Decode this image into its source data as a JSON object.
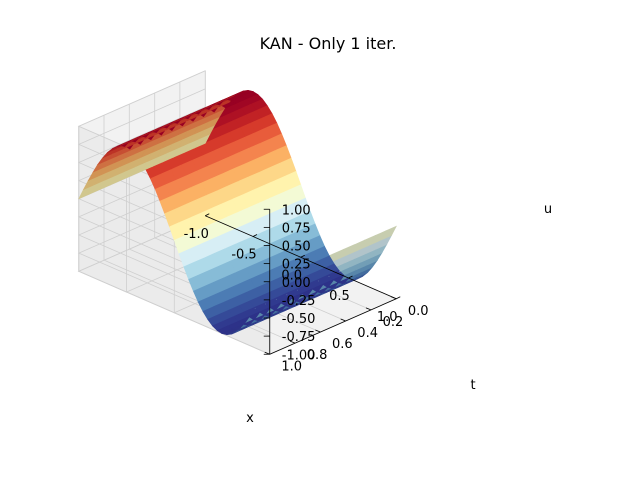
{
  "chart_data": {
    "type": "surface3d",
    "title": "KAN - Only 1 iter.",
    "xlabel": "x",
    "ylabel": "t",
    "zlabel": "u",
    "xlim": [
      -1,
      1
    ],
    "ylim": [
      0,
      1
    ],
    "zlim": [
      -1,
      1
    ],
    "xticks": [
      "-1.0",
      "-0.5",
      "0.0",
      "0.5",
      "1.0"
    ],
    "yticks": [
      "0.0",
      "0.2",
      "0.4",
      "0.6",
      "0.8",
      "1.0"
    ],
    "zticks": [
      "-1.00",
      "-0.75",
      "-0.50",
      "-0.25",
      "0.00",
      "0.25",
      "0.50",
      "0.75",
      "1.00"
    ],
    "surface": {
      "function": "u(x,t) = -sin(pi*x), constant in t",
      "x": [
        -1.0,
        -0.8,
        -0.6,
        -0.4,
        -0.2,
        0.0,
        0.2,
        0.4,
        0.6,
        0.8,
        1.0
      ],
      "u": [
        0.0,
        0.588,
        0.951,
        0.951,
        0.588,
        0.0,
        -0.588,
        -0.951,
        -0.951,
        -0.588,
        0.0
      ]
    },
    "colormap": "RdYlBu",
    "grid": true
  }
}
